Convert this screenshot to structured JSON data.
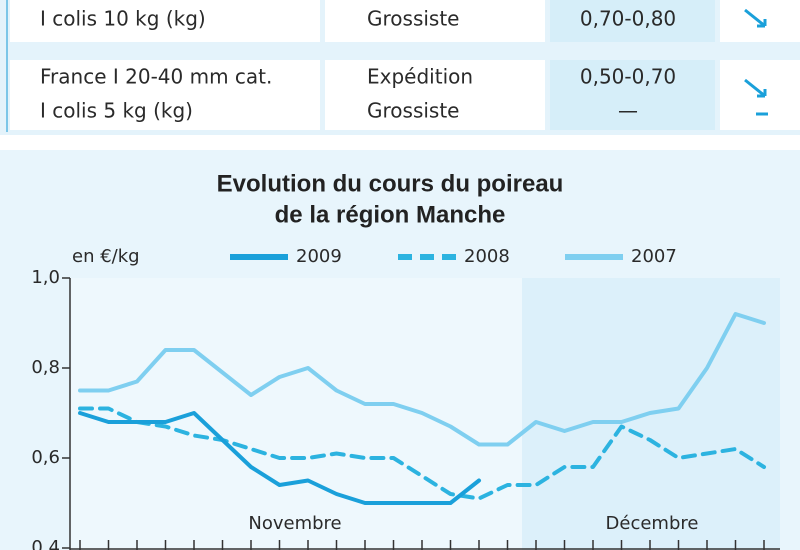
{
  "table": {
    "rows": [
      [
        [
          "I colis 10 kg (kg)"
        ],
        [
          "Grossiste"
        ],
        [
          "0,70-0,80"
        ]
      ],
      [
        [
          "France I 20-40 mm cat.",
          "I colis 5 kg (kg)"
        ],
        [
          "Expédition",
          "Grossiste"
        ],
        [
          "0,50-0,70",
          "—"
        ]
      ]
    ]
  },
  "chart_data": {
    "type": "line",
    "title": [
      "Evolution du cours du poireau",
      "de la région Manche"
    ],
    "y_label": "en €/kg",
    "categories": [
      null,
      null,
      null,
      null,
      null,
      null,
      null,
      null,
      null,
      null,
      null,
      null,
      null,
      null,
      null,
      null,
      null,
      null,
      null,
      null,
      null,
      null,
      null,
      null,
      null
    ],
    "annotations": [
      "Novembre",
      "Décembre"
    ],
    "ylim": [
      0.4,
      1.0
    ],
    "yticks": [
      {
        "value": 0.4,
        "label": "0,4"
      },
      {
        "value": 0.6,
        "label": "0,6"
      },
      {
        "value": 0.8,
        "label": "0,8"
      },
      {
        "value": 1.0,
        "label": "1,0"
      }
    ],
    "series": [
      {
        "name": "2009",
        "color": "#1aa0da",
        "dash": false,
        "values": [
          0.7,
          0.68,
          0.68,
          0.68,
          0.7,
          0.64,
          0.58,
          0.54,
          0.55,
          0.52,
          0.5,
          0.5,
          0.5,
          0.5,
          0.55,
          null,
          null,
          null,
          null,
          null,
          null,
          null,
          null,
          null,
          null
        ]
      },
      {
        "name": "2008",
        "color": "#2cb3e0",
        "dash": true,
        "values": [
          0.71,
          0.71,
          0.68,
          0.67,
          0.65,
          0.64,
          0.62,
          0.6,
          0.6,
          0.61,
          0.6,
          0.6,
          0.56,
          0.52,
          0.51,
          0.54,
          0.54,
          0.58,
          0.58,
          0.67,
          0.64,
          0.6,
          0.61,
          0.62,
          0.58
        ]
      },
      {
        "name": "2007",
        "color": "#7fcff0",
        "dash": false,
        "values": [
          0.75,
          0.75,
          0.77,
          0.84,
          0.84,
          0.79,
          0.74,
          0.78,
          0.8,
          0.75,
          0.72,
          0.72,
          0.7,
          0.67,
          0.63,
          0.63,
          0.68,
          0.66,
          0.68,
          0.68,
          0.7,
          0.71,
          0.8,
          0.92,
          0.9
        ]
      }
    ]
  }
}
